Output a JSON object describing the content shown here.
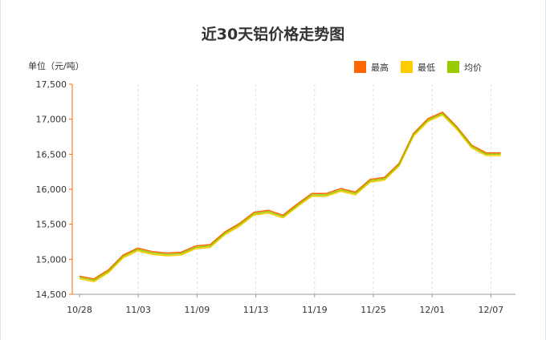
{
  "chart_data": {
    "type": "line",
    "title": "近30天铝价格走势图",
    "unit_label": "单位（元/吨）",
    "xlabel": "",
    "ylabel": "",
    "ylim": [
      14500,
      17500
    ],
    "y_ticks": [
      "14,500",
      "15,000",
      "15,500",
      "16,000",
      "16,500",
      "17,000",
      "17,500"
    ],
    "y_tick_values": [
      14500,
      15000,
      15500,
      16000,
      16500,
      17000,
      17500
    ],
    "x_tick_labels": [
      "10/28",
      "11/03",
      "11/09",
      "11/13",
      "11/19",
      "11/25",
      "12/01",
      "12/07"
    ],
    "x_tick_index": [
      0,
      6,
      12,
      18,
      24,
      30,
      36,
      42
    ],
    "grid": {
      "vertical": true,
      "horizontal": false
    },
    "legend_position": "top-right",
    "series": [
      {
        "name": "最高",
        "color": "#ff6600",
        "values": [
          14760,
          14720,
          14850,
          15060,
          15160,
          15110,
          15090,
          15100,
          15190,
          15210,
          15390,
          15510,
          15670,
          15700,
          15630,
          15790,
          15940,
          15940,
          16010,
          15960,
          16140,
          16170,
          16370,
          16800,
          17010,
          17100,
          16890,
          16630,
          16520,
          16520
        ]
      },
      {
        "name": "最低",
        "color": "#ffcc00",
        "values": [
          14720,
          14680,
          14810,
          15020,
          15120,
          15070,
          15050,
          15060,
          15150,
          15170,
          15350,
          15470,
          15630,
          15660,
          15590,
          15750,
          15900,
          15900,
          15970,
          15920,
          16100,
          16130,
          16330,
          16760,
          16970,
          17060,
          16850,
          16590,
          16480,
          16480
        ]
      },
      {
        "name": "均价",
        "color": "#99cc00",
        "values": [
          14740,
          14700,
          14830,
          15040,
          15140,
          15090,
          15070,
          15080,
          15170,
          15190,
          15370,
          15490,
          15650,
          15680,
          15610,
          15770,
          15920,
          15920,
          15990,
          15940,
          16120,
          16150,
          16350,
          16780,
          16990,
          17080,
          16870,
          16610,
          16500,
          16500
        ]
      }
    ]
  }
}
